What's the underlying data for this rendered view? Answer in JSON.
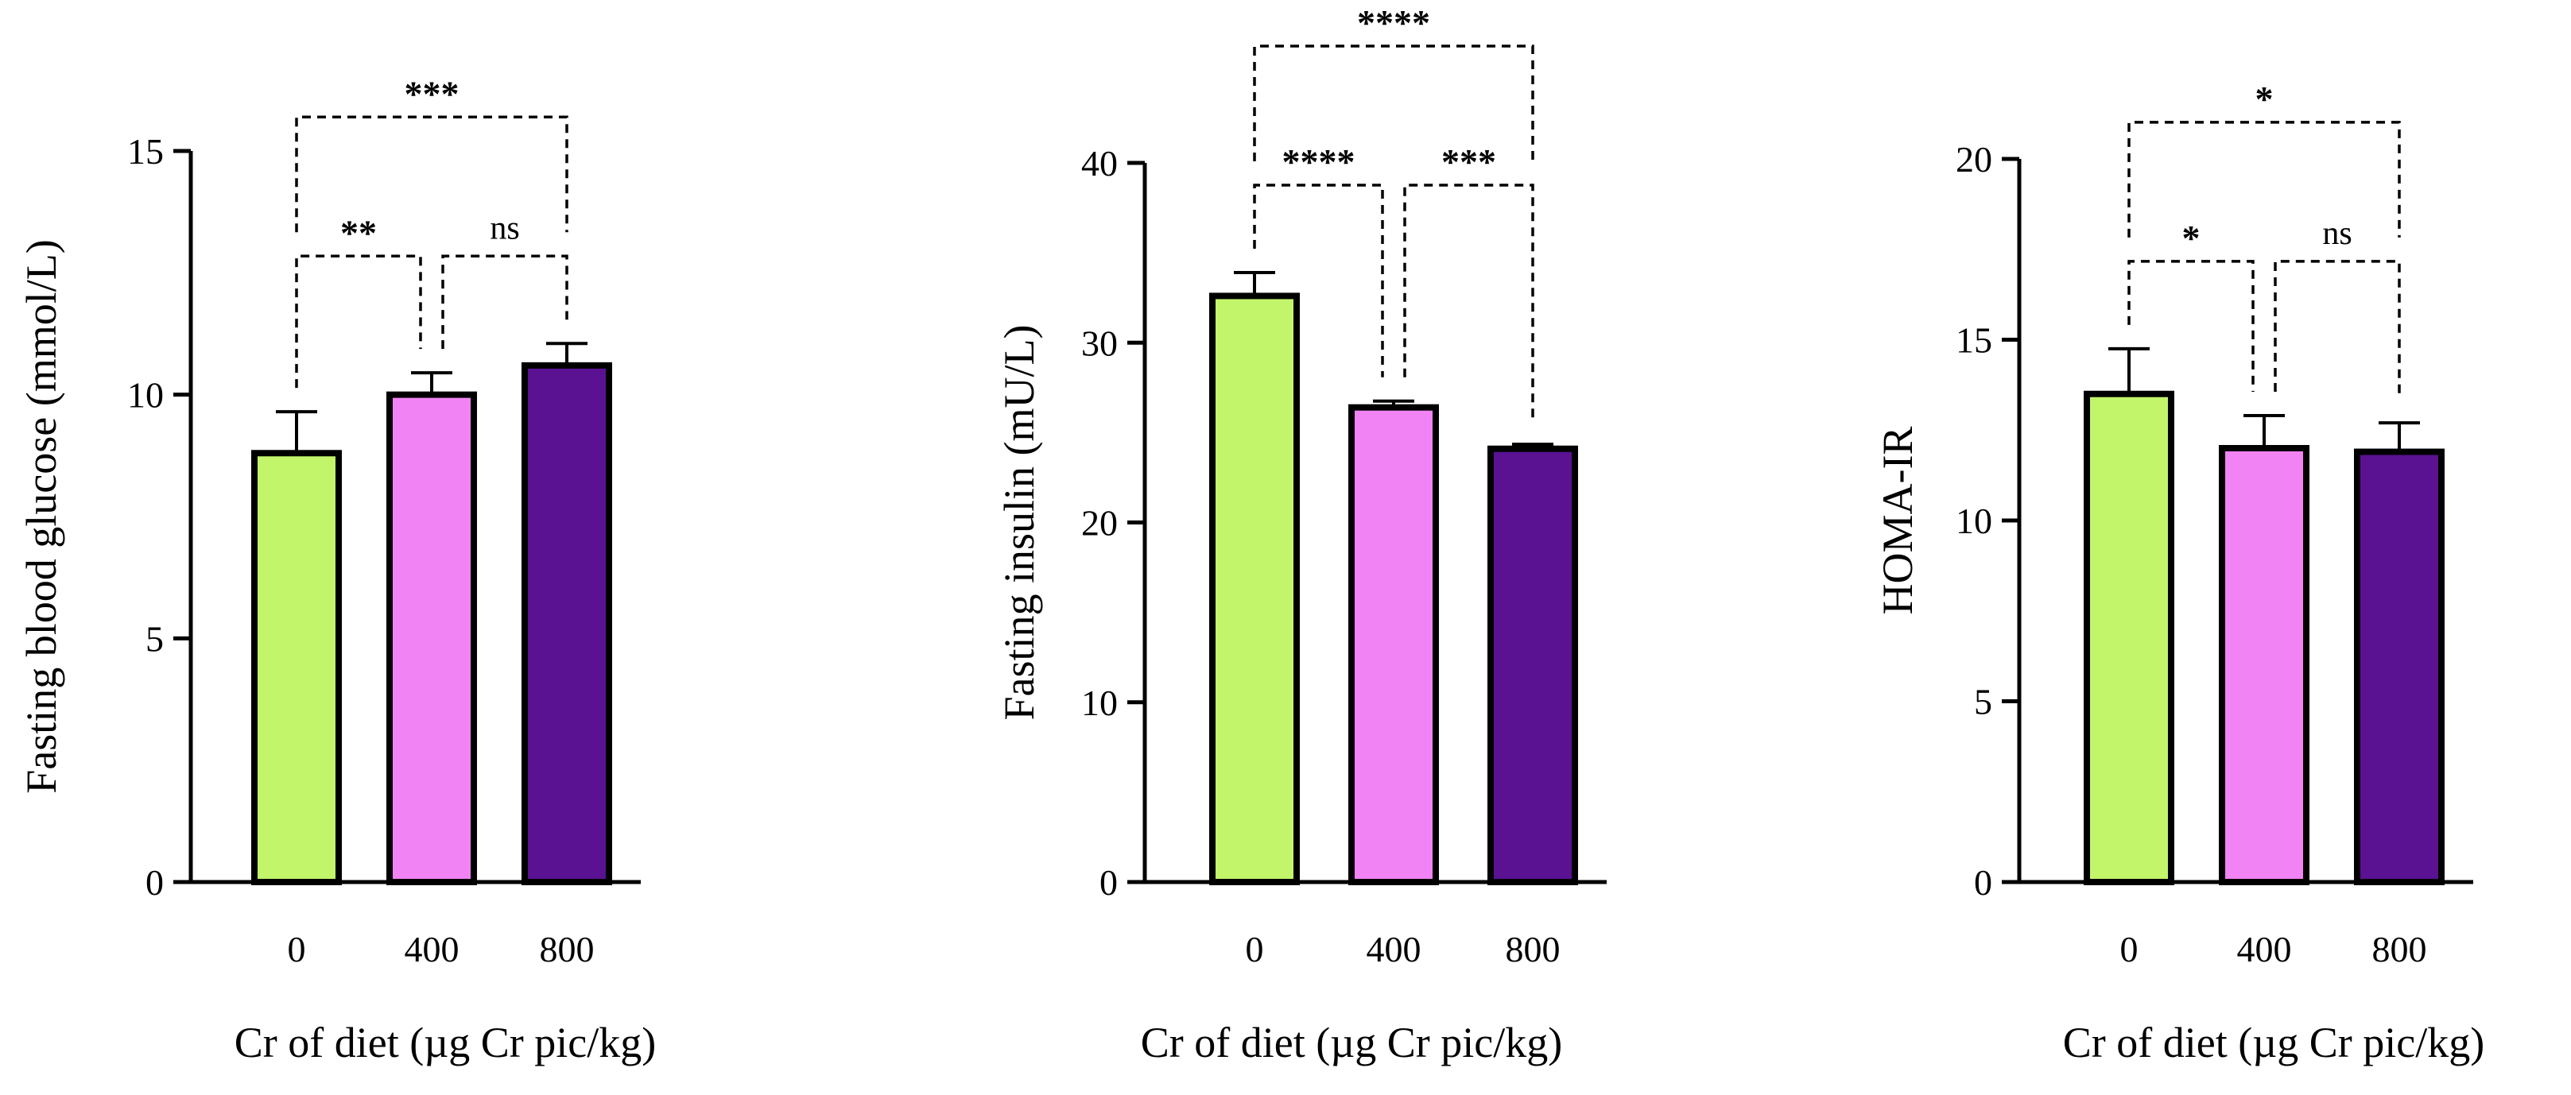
{
  "colors": {
    "bar_0": "#c2f56a",
    "bar_400": "#f283f5",
    "bar_800": "#5a1192",
    "outline": "#000000"
  },
  "chart_data": [
    {
      "type": "bar",
      "categories": [
        "0",
        "400",
        "800"
      ],
      "values": [
        8.8,
        10.0,
        10.6
      ],
      "error": [
        0.85,
        0.45,
        0.45
      ],
      "xlabel": "Cr of diet (µg Cr pic/kg)",
      "ylabel": "Fasting blood glucose (mmol/L)",
      "ylim": [
        0,
        15
      ],
      "yticks": [
        0,
        5,
        10,
        15
      ],
      "grid": false,
      "significance": [
        {
          "from": 0,
          "to": 1,
          "label": "**",
          "level": 1
        },
        {
          "from": 1,
          "to": 2,
          "label": "ns",
          "level": 1
        },
        {
          "from": 0,
          "to": 2,
          "label": "***",
          "level": 2
        }
      ]
    },
    {
      "type": "bar",
      "categories": [
        "0",
        "400",
        "800"
      ],
      "values": [
        32.6,
        26.4,
        24.1
      ],
      "error": [
        1.3,
        0.35,
        0.25
      ],
      "xlabel": "Cr of diet (µg Cr pic/kg)",
      "ylabel": "Fasting insulin (mU/L)",
      "ylim": [
        0,
        40
      ],
      "yticks": [
        0,
        10,
        20,
        30,
        40
      ],
      "grid": false,
      "significance": [
        {
          "from": 0,
          "to": 1,
          "label": "****",
          "level": 1
        },
        {
          "from": 1,
          "to": 2,
          "label": "***",
          "level": 1
        },
        {
          "from": 0,
          "to": 2,
          "label": "****",
          "level": 2
        }
      ]
    },
    {
      "type": "bar",
      "categories": [
        "0",
        "400",
        "800"
      ],
      "values": [
        13.5,
        12.0,
        11.9
      ],
      "error": [
        1.25,
        0.9,
        0.8
      ],
      "xlabel": "Cr of diet (µg Cr pic/kg)",
      "ylabel": "HOMA-IR",
      "ylim": [
        0,
        20
      ],
      "yticks": [
        0,
        5,
        10,
        15,
        20
      ],
      "grid": false,
      "significance": [
        {
          "from": 0,
          "to": 1,
          "label": "*",
          "level": 1
        },
        {
          "from": 1,
          "to": 2,
          "label": "ns",
          "level": 1
        },
        {
          "from": 0,
          "to": 2,
          "label": "*",
          "level": 2
        }
      ]
    }
  ]
}
